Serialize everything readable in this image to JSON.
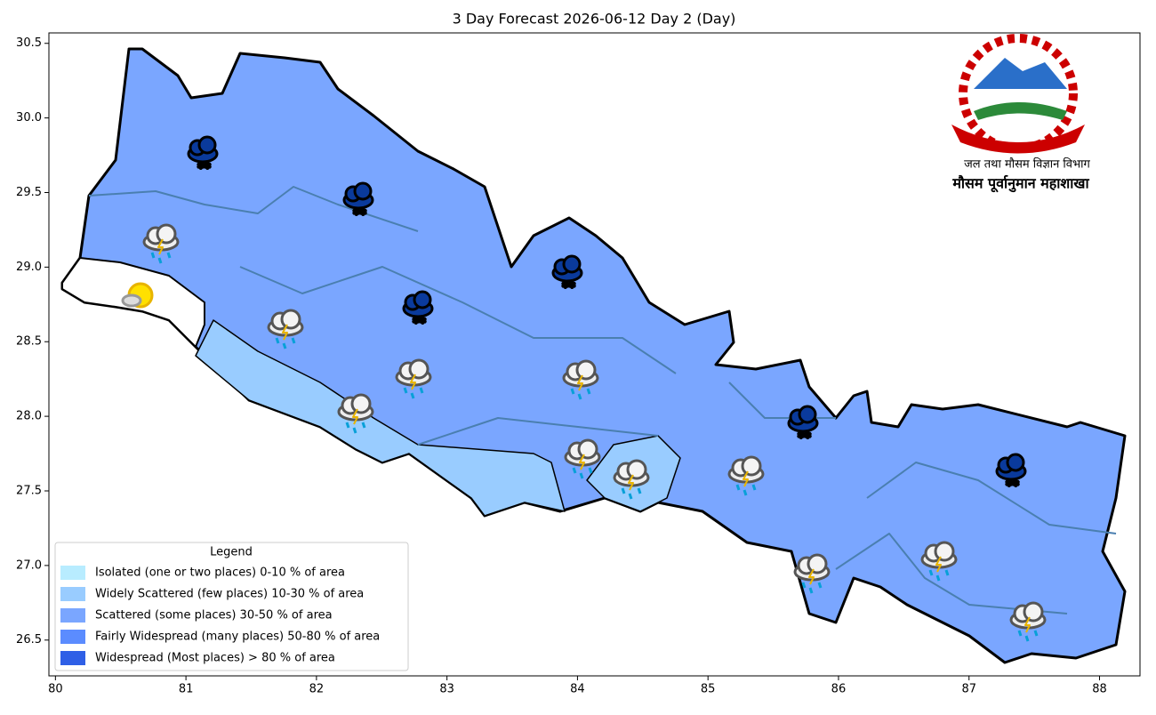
{
  "chart_data": {
    "type": "map",
    "title": "3 Day Forecast 2026-06-12 Day 2 (Day)",
    "xlim": [
      79.95,
      88.31
    ],
    "ylim": [
      26.26,
      30.57
    ],
    "xticks": [
      80,
      81,
      82,
      83,
      84,
      85,
      86,
      87,
      88
    ],
    "yticks": [
      {
        "value": 26.5,
        "label": "26.5"
      },
      {
        "value": 27,
        "label": "27.0"
      },
      {
        "value": 27.5,
        "label": "27.5"
      },
      {
        "value": 28,
        "label": "28.0"
      },
      {
        "value": 28.5,
        "label": "28.5"
      },
      {
        "value": 29,
        "label": "29.0"
      },
      {
        "value": 29.5,
        "label": "29.5"
      },
      {
        "value": 30,
        "label": "30.0"
      },
      {
        "value": 30.5,
        "label": "30.5"
      }
    ],
    "legend": {
      "title": "Legend",
      "items": [
        {
          "name": "Isolated (one or two places)  0-10 % of area",
          "color": "#b8ecff"
        },
        {
          "name": "Widely Scattered (few places)  10-30 % of area",
          "color": "#99ccff"
        },
        {
          "name": "Scattered (some places)  30-50 % of area",
          "color": "#7aa6ff"
        },
        {
          "name": "Fairly Widespread (many places)  50-80 % of area",
          "color": "#5b8cff"
        },
        {
          "name": "Widespread (Most places) > 80 % of area",
          "color": "#2f5fe6"
        }
      ]
    },
    "logo": {
      "line1": "जल तथा मौसम विज्ञान विभाग",
      "line2": "मौसम पूर्वानुमान महाशाखा"
    }
  }
}
